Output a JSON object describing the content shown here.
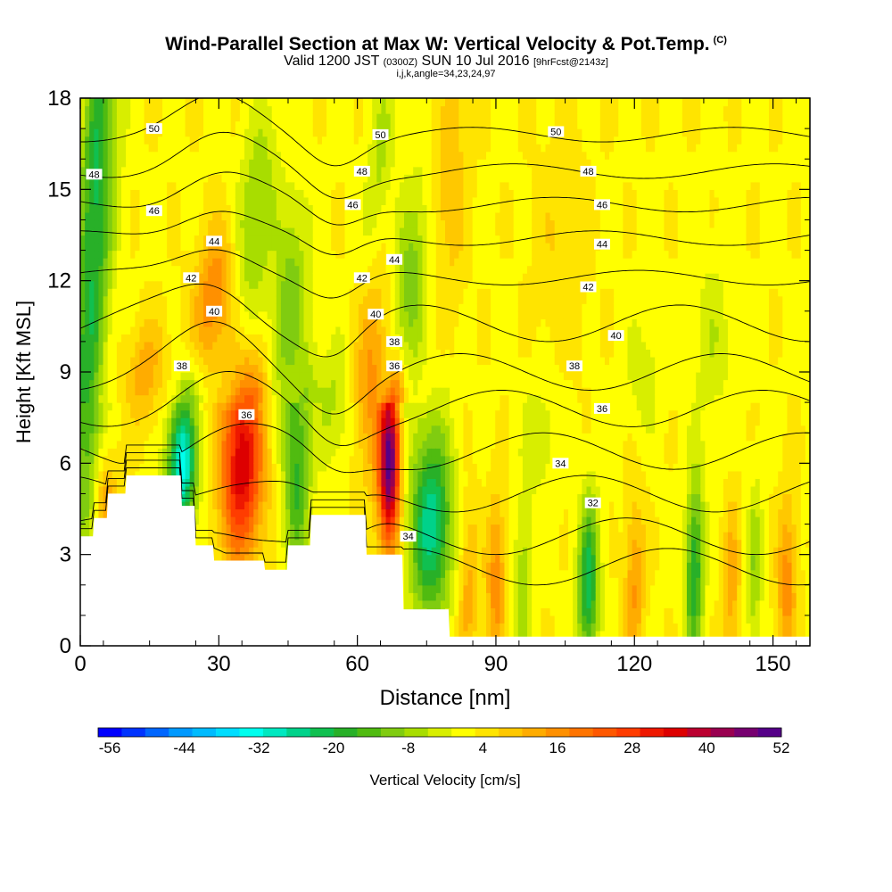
{
  "title": {
    "main": "Wind-Parallel Section at Max W: Vertical Velocity & Pot.Temp.",
    "copyright": "(C)",
    "valid_prefix": "Valid 1200 JST",
    "valid_utc": "(0300Z)",
    "valid_date": "SUN 10 Jul 2016",
    "forecast": "[9hrFcst@2143z]",
    "params": "i,j,k,angle=34,23,24,97"
  },
  "chart_data": {
    "type": "heatmap",
    "xlabel": "Distance [nm]",
    "ylabel": "Height [Kft MSL]",
    "xlim": [
      0,
      158
    ],
    "ylim": [
      0,
      18
    ],
    "x_ticks": [
      0,
      30,
      60,
      90,
      120,
      150
    ],
    "y_ticks": [
      0,
      3,
      6,
      9,
      12,
      15,
      18
    ],
    "colorbar": {
      "label": "Vertical Velocity [cm/s]",
      "tick_labels": [
        "-56",
        "-44",
        "-32",
        "-20",
        "-8",
        "4",
        "16",
        "28",
        "40",
        "52"
      ],
      "range": [
        -56,
        52
      ],
      "colors": [
        "#0000ff",
        "#0033ff",
        "#0066ff",
        "#0099ff",
        "#00bbff",
        "#00ddff",
        "#00ffee",
        "#00e8c0",
        "#00d28a",
        "#10c050",
        "#28b028",
        "#50bb10",
        "#80cc10",
        "#a8dd00",
        "#d8ee00",
        "#ffff00",
        "#ffe400",
        "#ffc800",
        "#ffac00",
        "#ff9000",
        "#ff7400",
        "#ff5800",
        "#ff3c00",
        "#ee1800",
        "#dd0000",
        "#bb0030",
        "#990050",
        "#770070",
        "#550088"
      ]
    },
    "theta_labels": [
      {
        "x": 16,
        "y": 17.0,
        "text": "50"
      },
      {
        "x": 65,
        "y": 16.8,
        "text": "50"
      },
      {
        "x": 103,
        "y": 16.9,
        "text": "50"
      },
      {
        "x": 3,
        "y": 15.5,
        "text": "48"
      },
      {
        "x": 61,
        "y": 15.6,
        "text": "48"
      },
      {
        "x": 110,
        "y": 15.6,
        "text": "48"
      },
      {
        "x": 16,
        "y": 14.3,
        "text": "46"
      },
      {
        "x": 59,
        "y": 14.5,
        "text": "46"
      },
      {
        "x": 113,
        "y": 14.5,
        "text": "46"
      },
      {
        "x": 29,
        "y": 13.3,
        "text": "44"
      },
      {
        "x": 68,
        "y": 12.7,
        "text": "44"
      },
      {
        "x": 113,
        "y": 13.2,
        "text": "44"
      },
      {
        "x": 24,
        "y": 12.1,
        "text": "42"
      },
      {
        "x": 61,
        "y": 12.1,
        "text": "42"
      },
      {
        "x": 110,
        "y": 11.8,
        "text": "42"
      },
      {
        "x": 29,
        "y": 11.0,
        "text": "40"
      },
      {
        "x": 64,
        "y": 10.9,
        "text": "40"
      },
      {
        "x": 116,
        "y": 10.2,
        "text": "40"
      },
      {
        "x": 22,
        "y": 9.2,
        "text": "38"
      },
      {
        "x": 68,
        "y": 10.0,
        "text": "38"
      },
      {
        "x": 107,
        "y": 9.2,
        "text": "38"
      },
      {
        "x": 36,
        "y": 7.6,
        "text": "36"
      },
      {
        "x": 68,
        "y": 9.2,
        "text": "36"
      },
      {
        "x": 113,
        "y": 7.8,
        "text": "36"
      },
      {
        "x": 104,
        "y": 6.0,
        "text": "34"
      },
      {
        "x": 71,
        "y": 3.6,
        "text": "34"
      },
      {
        "x": 111,
        "y": 4.7,
        "text": "32"
      }
    ]
  }
}
